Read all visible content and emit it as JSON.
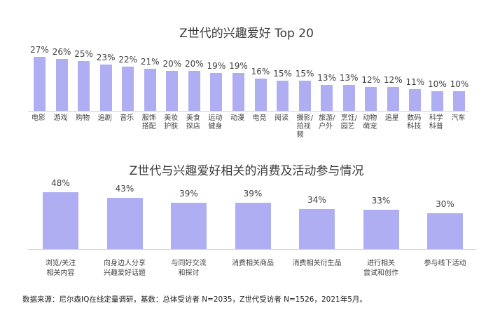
{
  "chart_data": [
    {
      "type": "bar",
      "title": "Z世代的兴趣爱好 Top 20",
      "xlabel": "",
      "ylabel": "",
      "ylim": [
        0,
        30
      ],
      "grid": false,
      "legend": null,
      "categories": [
        "电影",
        "游戏",
        "购物",
        "追剧",
        "音乐",
        "服饰搭配",
        "美妆护肤",
        "美食探店",
        "运动健身",
        "动漫",
        "电竞",
        "阅读",
        "摄影/拍视频",
        "旅游/户外",
        "烹饪/园艺",
        "动物萌宠",
        "追星",
        "数码科技",
        "科学科普",
        "汽车"
      ],
      "category_lines": [
        [
          "电影"
        ],
        [
          "游戏"
        ],
        [
          "购物"
        ],
        [
          "追剧"
        ],
        [
          "音乐"
        ],
        [
          "服饰",
          "搭配"
        ],
        [
          "美妆",
          "护肤"
        ],
        [
          "美食",
          "探店"
        ],
        [
          "运动",
          "健身"
        ],
        [
          "动漫"
        ],
        [
          "电竞"
        ],
        [
          "阅读"
        ],
        [
          "摄影/",
          "拍视",
          "频"
        ],
        [
          "旅游/",
          "户外"
        ],
        [
          "烹饪/",
          "园艺"
        ],
        [
          "动物",
          "萌宠"
        ],
        [
          "追星"
        ],
        [
          "数码",
          "科技"
        ],
        [
          "科学",
          "科普"
        ],
        [
          "汽车"
        ]
      ],
      "values": [
        27,
        26,
        25,
        23,
        22,
        21,
        20,
        20,
        19,
        19,
        16,
        15,
        15,
        13,
        13,
        12,
        12,
        11,
        10,
        10
      ],
      "value_labels": [
        "27%",
        "26%",
        "25%",
        "23%",
        "22%",
        "21%",
        "20%",
        "20%",
        "19%",
        "19%",
        "16%",
        "15%",
        "15%",
        "13%",
        "13%",
        "12%",
        "12%",
        "11%",
        "10%",
        "10%"
      ],
      "bar_color": "#b0aef2"
    },
    {
      "type": "bar",
      "title": "Z世代与兴趣爱好相关的消费及活动参与情况",
      "xlabel": "",
      "ylabel": "",
      "ylim": [
        0,
        50
      ],
      "grid": false,
      "legend": null,
      "categories": [
        "浏览/关注相关内容",
        "向身边人分享兴趣爱好话题",
        "与同好交流和探讨",
        "消费相关商品",
        "消费相关衍生品",
        "进行相关尝试和创作",
        "参与线下活动"
      ],
      "category_lines": [
        [
          "浏览/关注",
          "相关内容"
        ],
        [
          "向身边人分享",
          "兴趣爱好话题"
        ],
        [
          "与同好交流",
          "和探讨"
        ],
        [
          "消费相关商品"
        ],
        [
          "消费相关衍生品"
        ],
        [
          "进行相关",
          "尝试和创作"
        ],
        [
          "参与线下活动"
        ]
      ],
      "values": [
        48,
        43,
        39,
        39,
        34,
        33,
        30
      ],
      "value_labels": [
        "48%",
        "43%",
        "39%",
        "39%",
        "34%",
        "33%",
        "30%"
      ],
      "bar_color": "#b0aef2"
    }
  ],
  "footer": {
    "source": "数据来源：尼尔森IQ在线定量调研，基数：总体受访者 N=2035，Z世代受访者 N=1526，2021年5月。"
  }
}
